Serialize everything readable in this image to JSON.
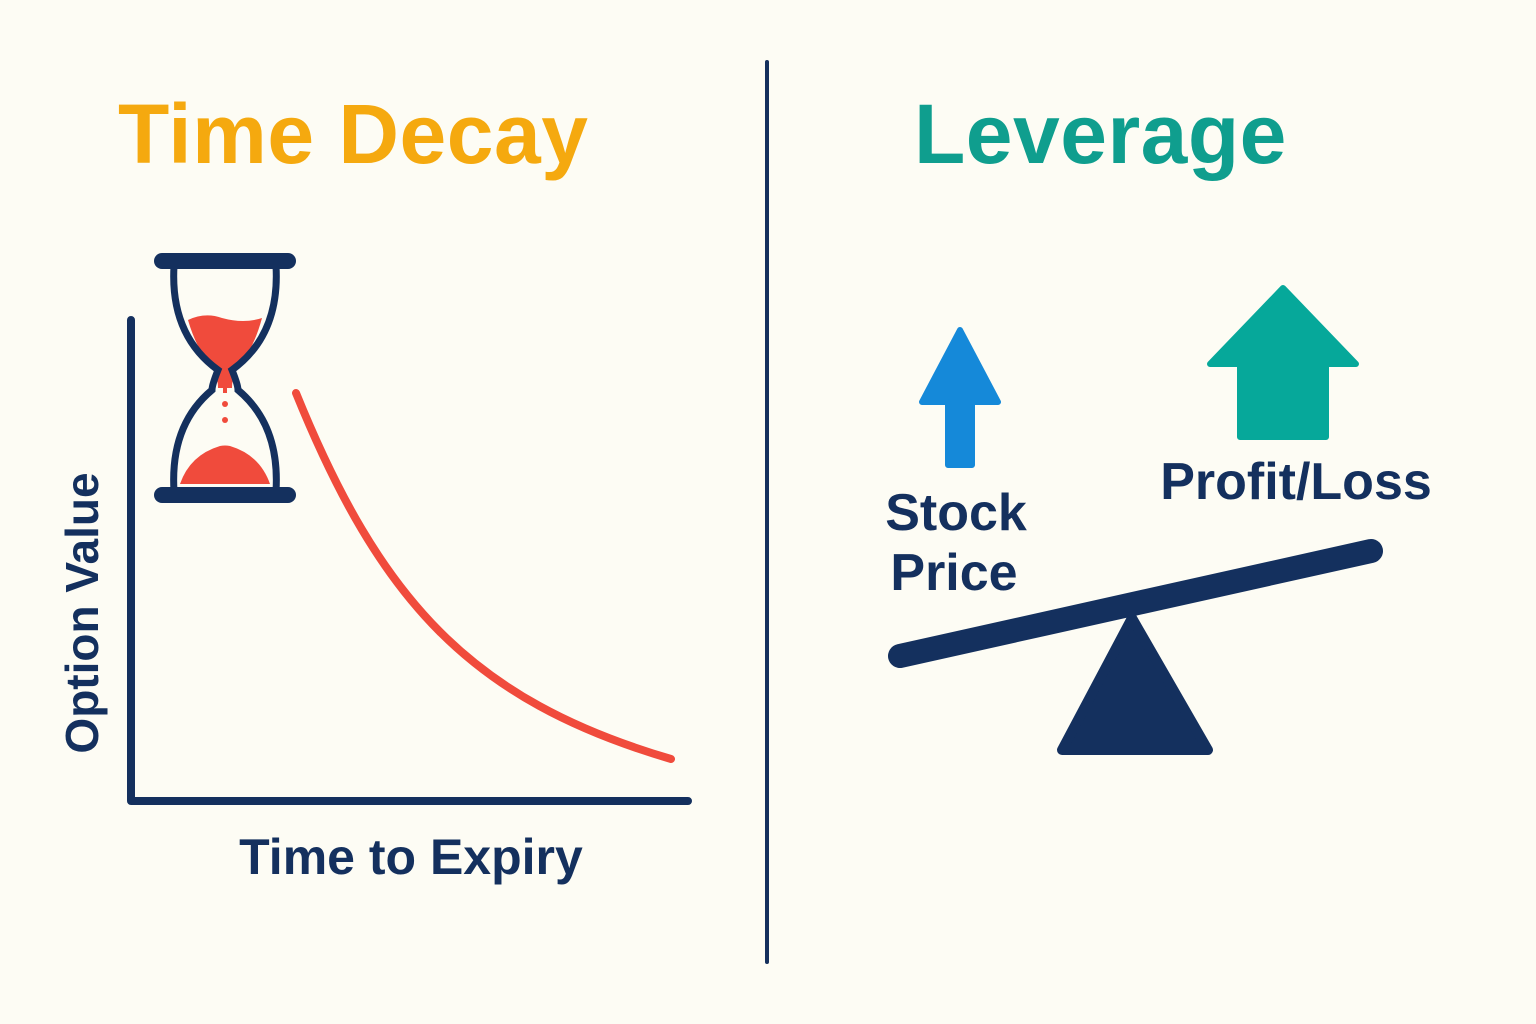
{
  "left_panel": {
    "title": "Time Decay",
    "y_axis_label": "Option Value",
    "x_axis_label": "Time to Expiry",
    "icon": "hourglass-icon"
  },
  "right_panel": {
    "title": "Leverage",
    "stock_price_label_line1": "Stock",
    "stock_price_label_line2": "Price",
    "profit_loss_label": "Profit/Loss",
    "icons": [
      "arrow-up-small-icon",
      "arrow-up-large-icon",
      "seesaw-icon"
    ]
  },
  "colors": {
    "background": "#fdfcf4",
    "navy": "#14305e",
    "orange_title": "#f5a90f",
    "teal_title": "#0f9e8e",
    "curve_red": "#f04b3c",
    "arrow_blue": "#1589d9",
    "arrow_teal": "#06a89a"
  }
}
